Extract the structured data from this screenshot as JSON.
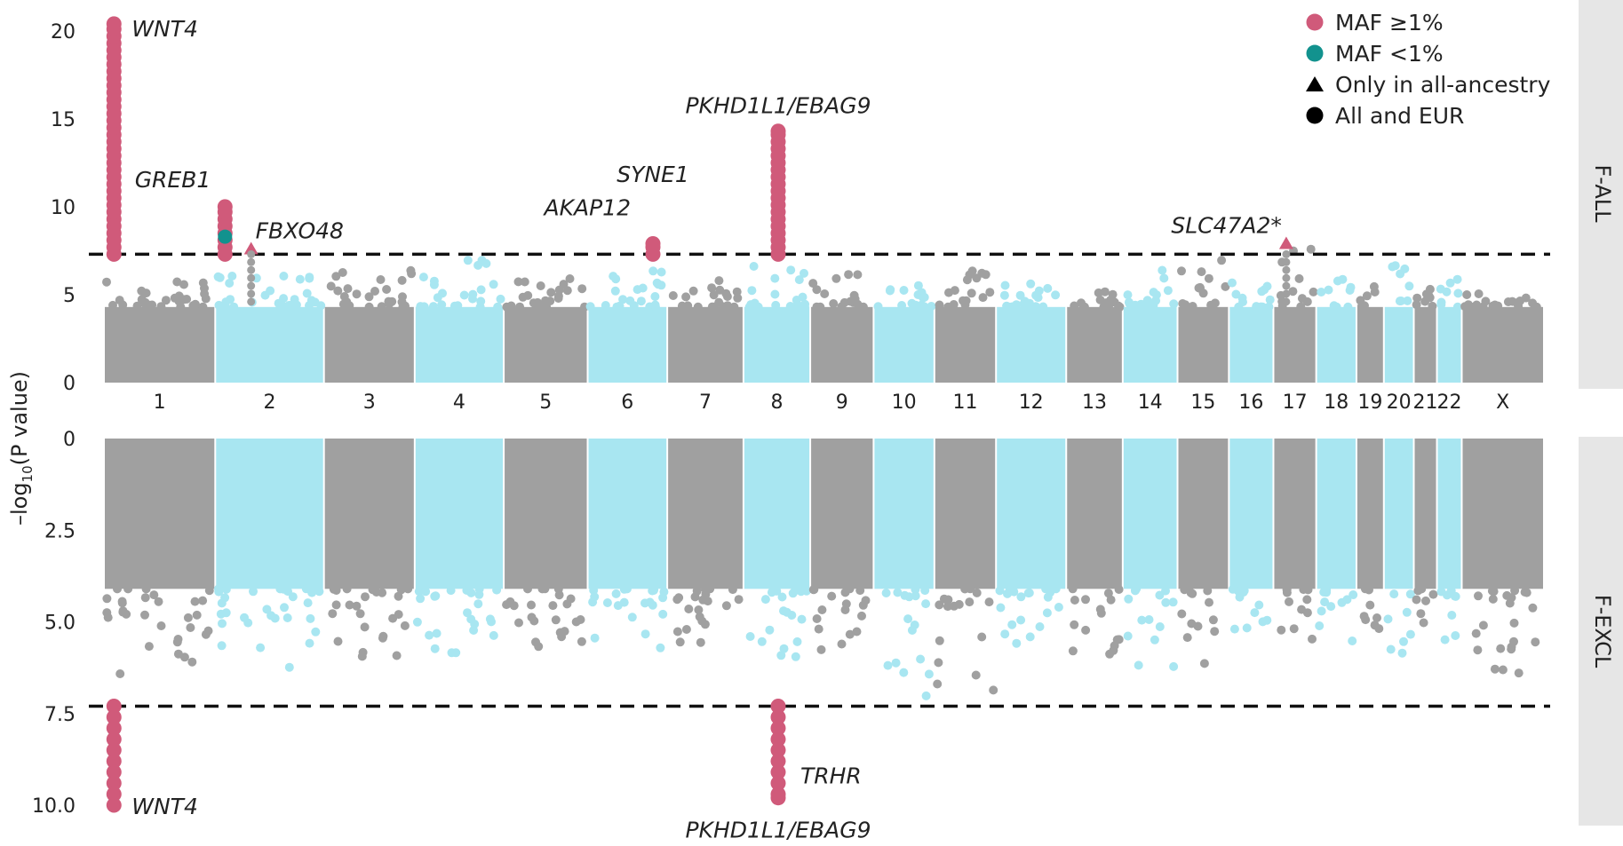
{
  "figure": {
    "ylabel_prefix": "–log",
    "ylabel_sub": "10",
    "ylabel_suffix": "(P value)",
    "threshold": 7.3,
    "legend": [
      {
        "label": "MAF ≥1%",
        "shape": "circle",
        "color": "#d05a7a"
      },
      {
        "label": "MAF <1%",
        "shape": "circle",
        "color": "#12928e"
      },
      {
        "label": "Only in all-ancestry",
        "shape": "triangle",
        "color": "#000000"
      },
      {
        "label": "All and EUR",
        "shape": "circle",
        "color": "#000000"
      }
    ],
    "colors": {
      "gray": "#a0a0a0",
      "cyan": "#a8e6f1",
      "sig_common": "#d05a7a",
      "sig_rare": "#12928e",
      "strip": "#e6e6e6"
    }
  },
  "chart_data": [
    {
      "type": "scatter",
      "panel_label": "F-ALL",
      "ylim": [
        0,
        21
      ],
      "yticks": [
        "0",
        "5",
        "10",
        "15",
        "20"
      ],
      "chromosomes": [
        "1",
        "2",
        "3",
        "4",
        "5",
        "6",
        "7",
        "8",
        "9",
        "10",
        "11",
        "12",
        "13",
        "14",
        "15",
        "16",
        "17",
        "18",
        "19",
        "20",
        "21",
        "22",
        "X"
      ],
      "chrom_max": [
        6.0,
        6.4,
        6.4,
        7.3,
        6.0,
        6.4,
        6.2,
        6.9,
        6.3,
        5.6,
        7.2,
        6.1,
        5.2,
        6.7,
        7.3,
        6.4,
        7.6,
        6.6,
        5.9,
        6.8,
        6.2,
        6.2,
        5.1
      ],
      "annotations": [
        {
          "gene": "WNT4",
          "chrom": "1",
          "peak": 20.4
        },
        {
          "gene": "GREB1",
          "chrom": "2",
          "peak": 10.0
        },
        {
          "gene": "FBXO48",
          "chrom": "2",
          "peak": 7.6
        },
        {
          "gene": "AKAP12",
          "chrom": "6",
          "peak": 7.9
        },
        {
          "gene": "SYNE1",
          "chrom": "6",
          "peak": 10.4
        },
        {
          "gene": "PKHD1L1/EBAG9",
          "chrom": "8",
          "peak": 14.3
        },
        {
          "gene": "SLC47A2*",
          "chrom": "17",
          "peak": 7.9
        }
      ]
    },
    {
      "type": "scatter",
      "panel_label": "F-EXCL",
      "ylim": [
        0,
        10.0
      ],
      "y_inverted": true,
      "yticks": [
        "0",
        "2.5",
        "5.0",
        "7.5",
        "10.0"
      ],
      "chromosomes": [
        "1",
        "2",
        "3",
        "4",
        "5",
        "6",
        "7",
        "8",
        "9",
        "10",
        "11",
        "12",
        "13",
        "14",
        "15",
        "16",
        "17",
        "18",
        "19",
        "20",
        "21",
        "22",
        "X"
      ],
      "chrom_max": [
        6.9,
        6.4,
        6.1,
        5.9,
        5.9,
        5.8,
        5.9,
        6.0,
        5.9,
        7.3,
        6.9,
        5.7,
        6.1,
        6.3,
        6.5,
        5.7,
        5.6,
        5.9,
        5.8,
        5.9,
        5.5,
        6.1,
        6.5
      ],
      "annotations": [
        {
          "gene": "WNT4",
          "chrom": "1",
          "peak": 10.0
        },
        {
          "gene": "TRHR",
          "chrom": "8",
          "peak": 9.8
        },
        {
          "gene": "PKHD1L1/EBAG9",
          "chrom": "8",
          "peak": 9.8
        }
      ]
    }
  ]
}
